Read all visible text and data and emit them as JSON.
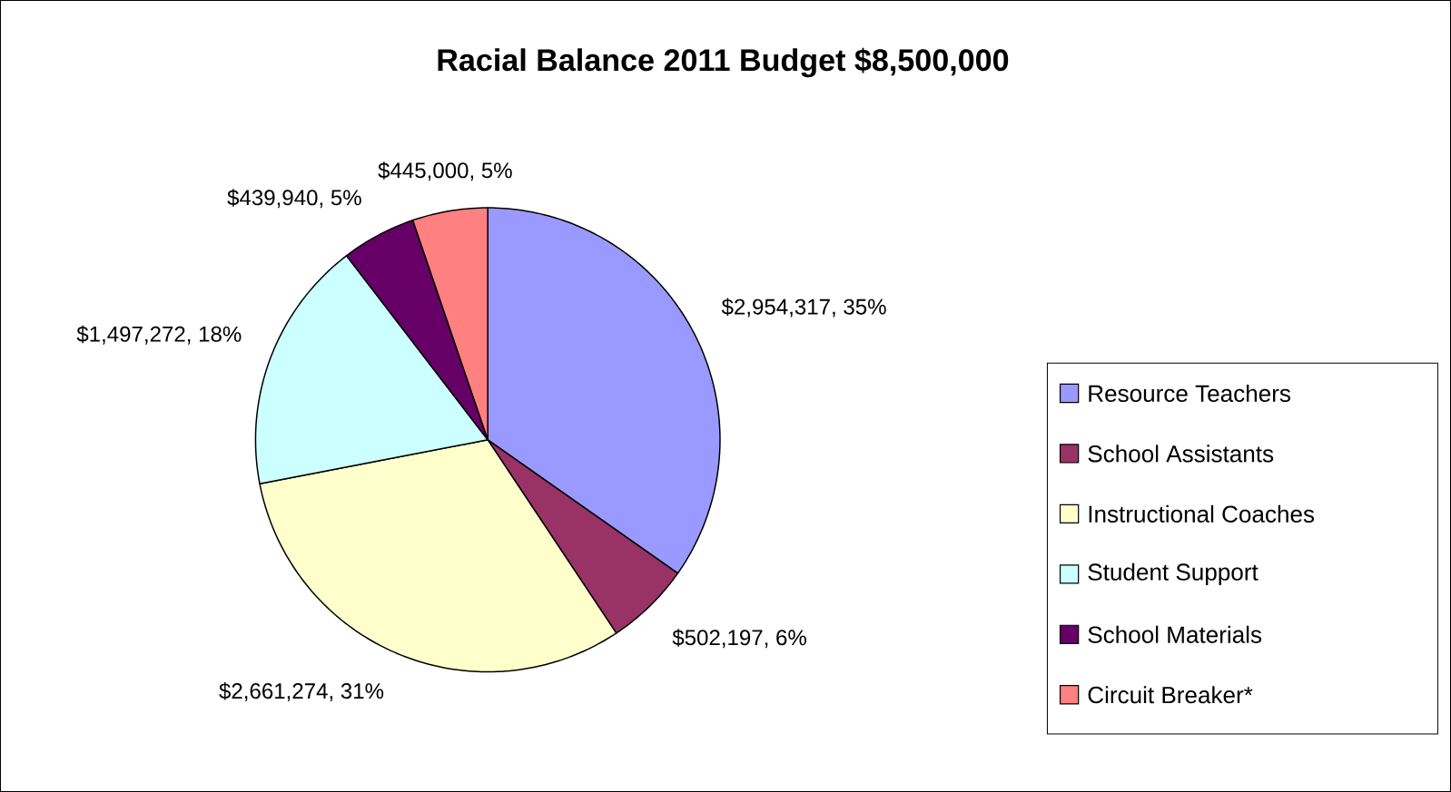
{
  "chart_data": {
    "type": "pie",
    "title": "Racial Balance 2011 Budget $8,500,000",
    "categories": [
      "Resource Teachers",
      "School Assistants",
      "Instructional Coaches",
      "Student Support",
      "School Materials",
      "Circuit Breaker*"
    ],
    "values": [
      2954317,
      502197,
      2661274,
      1497272,
      439940,
      445000
    ],
    "colors": [
      "#9999ff",
      "#993366",
      "#ffffcc",
      "#ccffff",
      "#660066",
      "#ff8080"
    ],
    "value_labels": [
      "$2,954,317, 35%",
      "$502,197, 6%",
      "$2,661,274, 31%",
      "$1,497,272, 18%",
      "$439,940, 5%",
      "$445,000, 5%"
    ],
    "legend": "right"
  }
}
